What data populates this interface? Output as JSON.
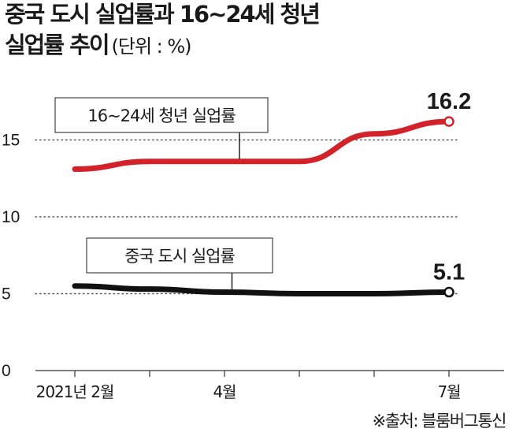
{
  "header": {
    "title_line1": "중국 도시 실업률과 16~24세 청년",
    "title_line2": "실업률 추이",
    "unit": "(단위 : %)"
  },
  "source": "※출처: 블룸버그통신",
  "colors": {
    "youth": "#d2232a",
    "urban": "#111111",
    "grid": "#555555"
  },
  "chart_data": {
    "type": "line",
    "x": [
      "2021-02",
      "2021-03",
      "2021-04",
      "2021-05",
      "2021-06",
      "2021-07"
    ],
    "x_tick_labels": [
      "2021년 2월",
      "4월",
      "7월"
    ],
    "x_tick_positions": [
      "2021-02",
      "2021-04",
      "2021-07"
    ],
    "y_ticks": [
      0,
      5,
      10,
      15
    ],
    "ylim": [
      0,
      18
    ],
    "grid": "horizontal dotted",
    "series": [
      {
        "name": "16~24세 청년 실업률",
        "color": "#d2232a",
        "values": [
          13.1,
          13.6,
          13.6,
          13.6,
          15.4,
          16.2
        ],
        "end_label": "16.2"
      },
      {
        "name": "중국 도시 실업률",
        "color": "#111111",
        "values": [
          5.5,
          5.3,
          5.1,
          5.0,
          5.0,
          5.1
        ],
        "end_label": "5.1"
      }
    ]
  }
}
